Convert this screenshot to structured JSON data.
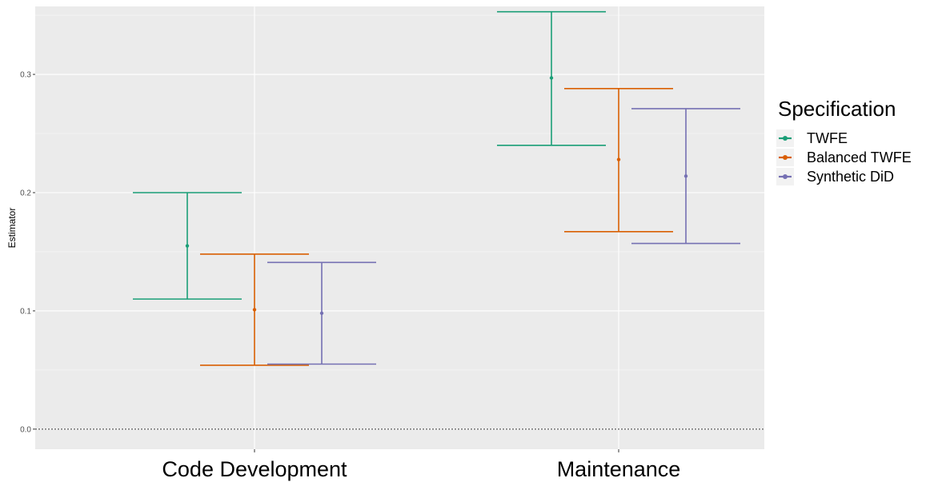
{
  "chart_data": {
    "type": "errorbar",
    "categories": [
      "Code Development",
      "Maintenance"
    ],
    "ylabel": "Estimator",
    "ylim": [
      -0.017,
      0.3575
    ],
    "y_ticks": [
      0.0,
      0.1,
      0.2,
      0.3
    ],
    "y_tick_labels": [
      "0.0",
      "0.1",
      "0.2",
      "0.3"
    ],
    "reference_line": {
      "y": 0.0,
      "style": "dotted"
    },
    "grid": true,
    "legend": {
      "title": "Specification",
      "position": "right"
    },
    "series": [
      {
        "name": "TWFE",
        "color": "#1b9e77",
        "points": [
          {
            "category": "Code Development",
            "estimate": 0.155,
            "lower": 0.11,
            "upper": 0.2
          },
          {
            "category": "Maintenance",
            "estimate": 0.297,
            "lower": 0.24,
            "upper": 0.353
          }
        ]
      },
      {
        "name": "Balanced TWFE",
        "color": "#d95f02",
        "points": [
          {
            "category": "Code Development",
            "estimate": 0.101,
            "lower": 0.054,
            "upper": 0.148
          },
          {
            "category": "Maintenance",
            "estimate": 0.228,
            "lower": 0.167,
            "upper": 0.288
          }
        ]
      },
      {
        "name": "Synthetic DiD",
        "color": "#7570b3",
        "points": [
          {
            "category": "Code Development",
            "estimate": 0.098,
            "lower": 0.055,
            "upper": 0.141
          },
          {
            "category": "Maintenance",
            "estimate": 0.214,
            "lower": 0.157,
            "upper": 0.271
          }
        ]
      }
    ]
  }
}
